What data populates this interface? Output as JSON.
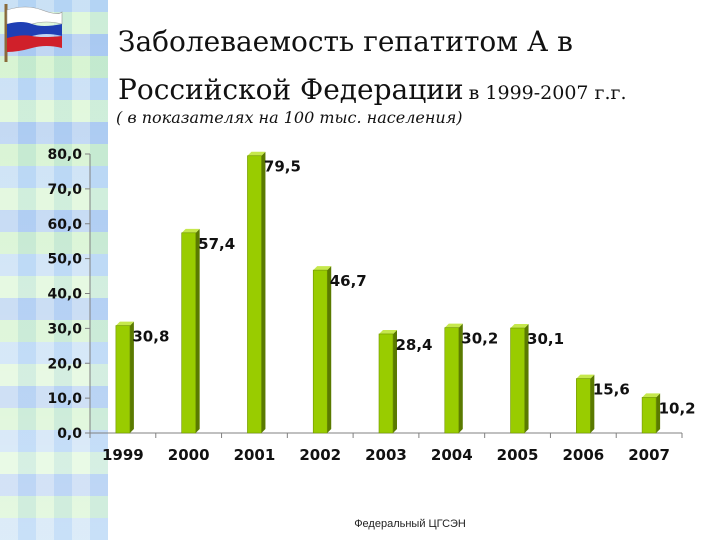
{
  "title_line1": "Заболеваемость гепатитом А в",
  "title_line2_big": "Российской Федерации",
  "title_line2_small": "в 1999-2007 г.г.",
  "subtitle": "( в показателях на 100 тыс. населения)",
  "footer": "Федеральный ЦГСЭН",
  "colors": {
    "bar": "#99cc00",
    "bar_top": "#c6e84d",
    "bar_side": "#5a7a00",
    "axis": "#808080",
    "text": "#111111"
  },
  "chart_data": {
    "type": "bar",
    "categories": [
      "1999",
      "2000",
      "2001",
      "2002",
      "2003",
      "2004",
      "2005",
      "2006",
      "2007"
    ],
    "values": [
      30.8,
      57.4,
      79.5,
      46.7,
      28.4,
      30.2,
      30.1,
      15.6,
      10.2
    ],
    "data_labels": [
      "30,8",
      "57,4",
      "79,5",
      "46,7",
      "28,4",
      "30,2",
      "30,1",
      "15,6",
      "10,2"
    ],
    "ylim": [
      0,
      80
    ],
    "yticks": [
      "0,0",
      "10,0",
      "20,0",
      "30,0",
      "40,0",
      "50,0",
      "60,0",
      "70,0",
      "80,0"
    ],
    "ytick_values": [
      0,
      10,
      20,
      30,
      40,
      50,
      60,
      70,
      80
    ],
    "grid": false,
    "legend": "none"
  }
}
